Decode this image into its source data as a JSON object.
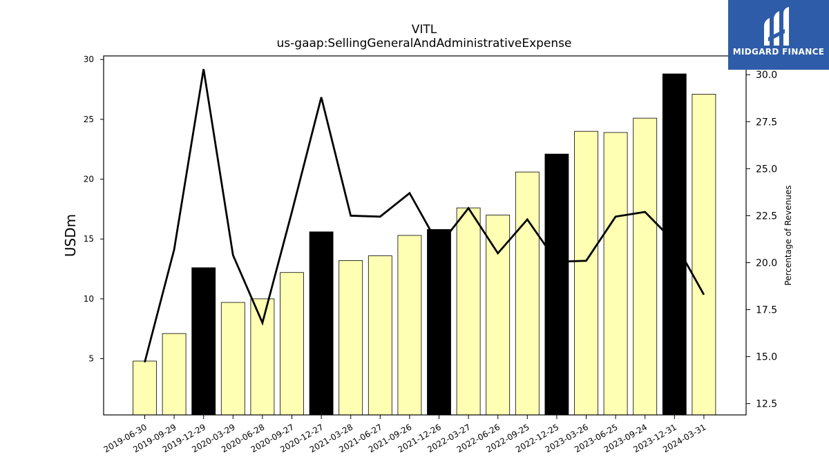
{
  "chart_data": {
    "type": "bar",
    "title": "VITL",
    "subtitle": "us-gaap:SellingGeneralAndAdministrativeExpense",
    "ylabel": "USDm",
    "ylabel_right": "Percentage of Revenues",
    "ylim": [
      0.3,
      30.3
    ],
    "ylim_right": [
      11.9,
      31.0
    ],
    "yticks": [
      5,
      10,
      15,
      20,
      25,
      30
    ],
    "yticks_right": [
      "12.5",
      "15.0",
      "17.5",
      "20.0",
      "22.5",
      "25.0",
      "27.5",
      "30.0"
    ],
    "categories": [
      "2019-06-30",
      "2019-09-29",
      "2019-12-29",
      "2020-03-29",
      "2020-06-28",
      "2020-09-27",
      "2020-12-27",
      "2021-03-28",
      "2021-06-27",
      "2021-09-26",
      "2021-12-26",
      "2022-03-27",
      "2022-06-26",
      "2022-09-25",
      "2022-12-25",
      "2023-03-26",
      "2023-06-25",
      "2023-09-24",
      "2023-12-31",
      "2024-03-31"
    ],
    "series": [
      {
        "values": [
          4.8,
          7.1,
          12.6,
          9.7,
          10.0,
          12.2,
          15.6,
          13.2,
          13.6,
          15.3,
          15.8,
          17.6,
          17.0,
          20.6,
          22.1,
          24.0,
          23.9,
          25.1,
          28.8,
          27.1
        ],
        "highlight": [
          false,
          false,
          true,
          false,
          false,
          false,
          true,
          false,
          false,
          false,
          true,
          false,
          false,
          false,
          true,
          false,
          false,
          false,
          true,
          false
        ]
      },
      {
        "axis": "right",
        "type": "line",
        "values": [
          14.7,
          20.7,
          30.3,
          20.4,
          16.8,
          22.7,
          28.8,
          22.5,
          22.45,
          23.7,
          20.9,
          22.9,
          20.5,
          22.3,
          20.05,
          20.1,
          22.45,
          22.7,
          21.1,
          18.3
        ]
      }
    ],
    "colors": {
      "bar": "#ffffb3",
      "bar_highlight": "#000000",
      "line": "#000000"
    },
    "grid": false
  },
  "logo": {
    "text": "MIDGARD FINANCE",
    "background": "#2e5ca8"
  }
}
